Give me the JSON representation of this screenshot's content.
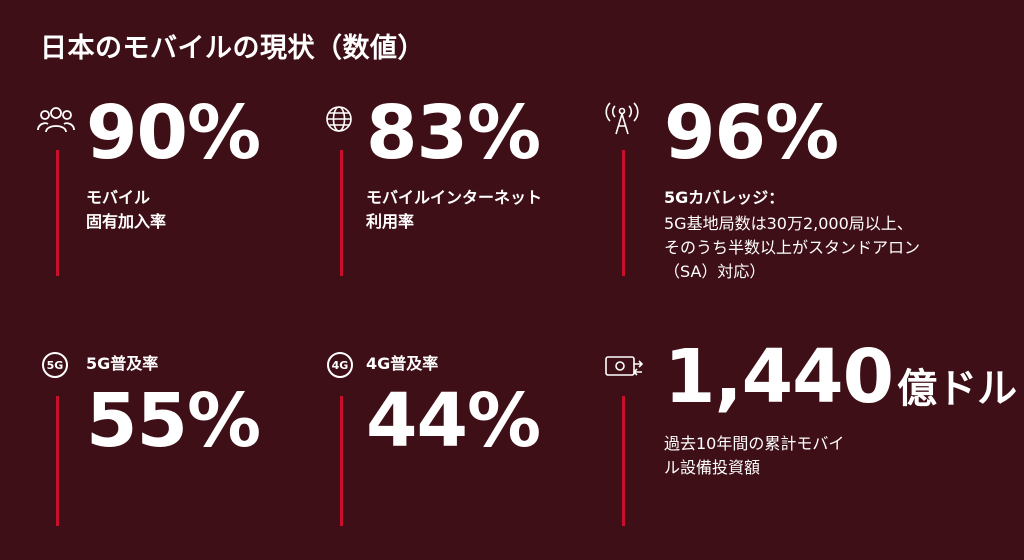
{
  "title": "日本のモバイルの現状（数値）",
  "accent_color": "#c8102e",
  "background_color": "#3e0f17",
  "stats": [
    {
      "icon": "people-icon",
      "value": "90%",
      "label_lines": [
        "モバイル",
        "固有加入率"
      ]
    },
    {
      "icon": "globe-icon",
      "value": "83%",
      "label_lines": [
        "モバイルインターネット",
        "利用率"
      ]
    },
    {
      "icon": "antenna-icon",
      "value": "96%",
      "label": "5Gカバレッジ：",
      "desc_lines": [
        "5G基地局数は30万2,000局以上、",
        "そのうち半数以上がスタンドアロン",
        "（SA）対応）"
      ]
    },
    {
      "icon": "5g-icon",
      "icon_text": "5G",
      "label": "5G普及率",
      "value": "55%"
    },
    {
      "icon": "4g-icon",
      "icon_text": "4G",
      "label": "4G普及率",
      "value": "44%"
    },
    {
      "icon": "money-icon",
      "value": "1,440",
      "unit": "億ドル",
      "desc_lines": [
        "過去10年間の累計モバイ",
        "ル設備投資額"
      ]
    }
  ]
}
